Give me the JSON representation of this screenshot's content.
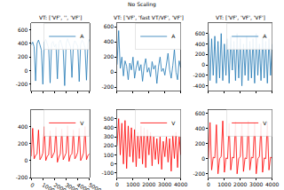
{
  "title": "No Scaling",
  "chart_data": [
    {
      "type": "line",
      "title": "VT: ['VF', '', 'VF']",
      "grid": false,
      "legend": "upper right",
      "tick_labels": "y",
      "xlim": [
        0,
        5000
      ],
      "xticks": [
        0,
        1000,
        2000,
        3000,
        4000,
        5000
      ],
      "ylim": [
        -300,
        700
      ],
      "yticks": [
        -200,
        0,
        200,
        400,
        600
      ],
      "x": [
        0,
        125,
        250,
        375,
        500,
        625,
        750,
        875,
        1000,
        1125,
        1250,
        1375,
        1500,
        1625,
        1750,
        1875,
        2000,
        2125,
        2250,
        2375,
        2500,
        2625,
        2750,
        2875,
        3000,
        3125,
        3250,
        3375,
        3500,
        3625,
        3750,
        3875,
        4000,
        4125,
        4250,
        4375,
        4500,
        4625,
        4750,
        4875,
        5000
      ],
      "series": [
        {
          "name": "A",
          "color": "#1f77b4",
          "values": [
            380,
            420,
            350,
            -150,
            400,
            450,
            380,
            300,
            -200,
            420,
            460,
            380,
            330,
            -180,
            400,
            430,
            350,
            390,
            -120,
            410,
            450,
            380,
            300,
            -220,
            400,
            470,
            420,
            350,
            -100,
            380,
            440,
            400,
            360,
            -160,
            390,
            450,
            410,
            340,
            -140,
            400,
            460
          ]
        }
      ]
    },
    {
      "type": "line",
      "grid": false,
      "legend": "upper right",
      "xlim": [
        0,
        5000
      ],
      "xticks": [
        0,
        1000,
        2000,
        3000,
        4000,
        5000
      ],
      "ylim": [
        -200,
        600
      ],
      "yticks": [
        -200,
        0,
        200,
        400
      ],
      "x": [
        0,
        125,
        250,
        375,
        500,
        625,
        750,
        875,
        1000,
        1125,
        1250,
        1375,
        1500,
        1625,
        1750,
        1875,
        2000,
        2125,
        2250,
        2375,
        2500,
        2625,
        2750,
        2875,
        3000,
        3125,
        3250,
        3375,
        3500,
        3625,
        3750,
        3875,
        4000,
        4125,
        4250,
        4375,
        4500,
        4625,
        4750,
        4875,
        5000
      ],
      "series": [
        {
          "name": "V",
          "color": "#ff0000",
          "values": [
            50,
            380,
            20,
            60,
            80,
            360,
            10,
            40,
            90,
            400,
            0,
            50,
            70,
            350,
            30,
            60,
            100,
            390,
            -20,
            40,
            80,
            370,
            10,
            50,
            90,
            410,
            -10,
            60,
            80,
            360,
            20,
            50,
            100,
            380,
            0,
            40,
            90,
            400,
            10,
            60,
            80
          ]
        }
      ]
    },
    {
      "type": "line",
      "title": "VT: ['VF', 'fast VT/VF', 'VF']",
      "grid": false,
      "legend": "upper right",
      "tick_labels": "y",
      "xlim": [
        0,
        4000
      ],
      "xticks": [
        0,
        1000,
        2000,
        3000,
        4000
      ],
      "ylim": [
        -250,
        650
      ],
      "yticks": [
        -200,
        0,
        200,
        400,
        600
      ],
      "x": [
        0,
        100,
        200,
        300,
        400,
        500,
        600,
        700,
        800,
        900,
        1000,
        1100,
        1200,
        1300,
        1400,
        1500,
        1600,
        1700,
        1800,
        1900,
        2000,
        2100,
        2200,
        2300,
        2400,
        2500,
        2600,
        2700,
        2800,
        2900,
        3000,
        3100,
        3200,
        3300,
        3400,
        3500,
        3600,
        3700,
        3800,
        3900,
        4000
      ],
      "series": [
        {
          "name": "A",
          "color": "#1f77b4",
          "values": [
            100,
            550,
            50,
            200,
            -50,
            150,
            80,
            -100,
            120,
            30,
            200,
            -80,
            60,
            150,
            20,
            100,
            -120,
            80,
            180,
            0,
            60,
            -60,
            140,
            40,
            90,
            -150,
            70,
            200,
            10,
            50,
            -40,
            120,
            250,
            30,
            -80,
            90,
            300,
            0,
            -100,
            150,
            60
          ]
        }
      ]
    },
    {
      "type": "line",
      "grid": false,
      "legend": "upper right",
      "xlim": [
        0,
        4000
      ],
      "xticks": [
        0,
        1000,
        2000,
        3000,
        4000
      ],
      "ylim": [
        -150,
        600
      ],
      "yticks": [
        -100,
        0,
        100,
        200,
        300,
        400,
        500
      ],
      "x": [
        0,
        100,
        200,
        300,
        400,
        500,
        600,
        700,
        800,
        900,
        1000,
        1100,
        1200,
        1300,
        1400,
        1500,
        1600,
        1700,
        1800,
        1900,
        2000,
        2100,
        2200,
        2300,
        2400,
        2500,
        2600,
        2700,
        2800,
        2900,
        3000,
        3100,
        3200,
        3300,
        3400,
        3500,
        3600,
        3700,
        3800,
        3900,
        4000
      ],
      "series": [
        {
          "name": "V",
          "color": "#ff0000",
          "values": [
            200,
            500,
            100,
            450,
            0,
            480,
            -50,
            420,
            80,
            400,
            20,
            380,
            -30,
            350,
            60,
            420,
            0,
            400,
            -40,
            380,
            100,
            350,
            -20,
            300,
            50,
            280,
            0,
            300,
            -60,
            250,
            80,
            300,
            20,
            280,
            -80,
            320,
            60,
            350,
            -40,
            300,
            100
          ]
        }
      ]
    },
    {
      "type": "line",
      "title": "VT: ['VF', 'VF', 'VF']",
      "grid": false,
      "legend": "upper right",
      "tick_labels": "y",
      "xlim": [
        0,
        4000
      ],
      "xticks": [
        0,
        1000,
        2000,
        3000,
        4000
      ],
      "ylim": [
        -500,
        800
      ],
      "yticks": [
        -400,
        -200,
        0,
        200,
        400,
        600
      ],
      "x": [
        0,
        100,
        200,
        300,
        400,
        500,
        600,
        700,
        800,
        900,
        1000,
        1100,
        1200,
        1300,
        1400,
        1500,
        1600,
        1700,
        1800,
        1900,
        2000,
        2100,
        2200,
        2300,
        2400,
        2500,
        2600,
        2700,
        2800,
        2900,
        3000,
        3100,
        3200,
        3300,
        3400,
        3500,
        3600,
        3700,
        3800,
        3900,
        4000
      ],
      "series": [
        {
          "name": "A",
          "color": "#1f77b4",
          "values": [
            600,
            -300,
            500,
            -200,
            550,
            -350,
            450,
            -250,
            600,
            -300,
            400,
            -200,
            500,
            -350,
            550,
            -100,
            450,
            -300,
            600,
            -250,
            500,
            -400,
            400,
            -200,
            550,
            -300,
            450,
            -250,
            500,
            -350,
            600,
            -200,
            400,
            -300,
            550,
            -250,
            450,
            -350,
            500,
            -200,
            400
          ]
        }
      ]
    },
    {
      "type": "line",
      "grid": false,
      "legend": "upper right",
      "xlim": [
        0,
        4000
      ],
      "xticks": [
        0,
        1000,
        2000,
        3000,
        4000
      ],
      "ylim": [
        -250,
        650
      ],
      "yticks": [
        -200,
        0,
        200,
        400,
        600
      ],
      "x": [
        0,
        100,
        200,
        300,
        400,
        500,
        600,
        700,
        800,
        900,
        1000,
        1100,
        1200,
        1300,
        1400,
        1500,
        1600,
        1700,
        1800,
        1900,
        2000,
        2100,
        2200,
        2300,
        2400,
        2500,
        2600,
        2700,
        2800,
        2900,
        3000,
        3100,
        3200,
        3300,
        3400,
        3500,
        3600,
        3700,
        3800,
        3900,
        4000
      ],
      "series": [
        {
          "name": "V",
          "color": "#ff0000",
          "values": [
            0,
            480,
            -150,
            20,
            10,
            450,
            -200,
            0,
            30,
            500,
            -180,
            10,
            0,
            470,
            -150,
            20,
            10,
            490,
            -200,
            0,
            30,
            460,
            -170,
            10,
            0,
            500,
            -150,
            20,
            10,
            480,
            -200,
            0,
            30,
            470,
            -180,
            10,
            0,
            490,
            -150,
            20,
            10
          ]
        }
      ]
    }
  ]
}
